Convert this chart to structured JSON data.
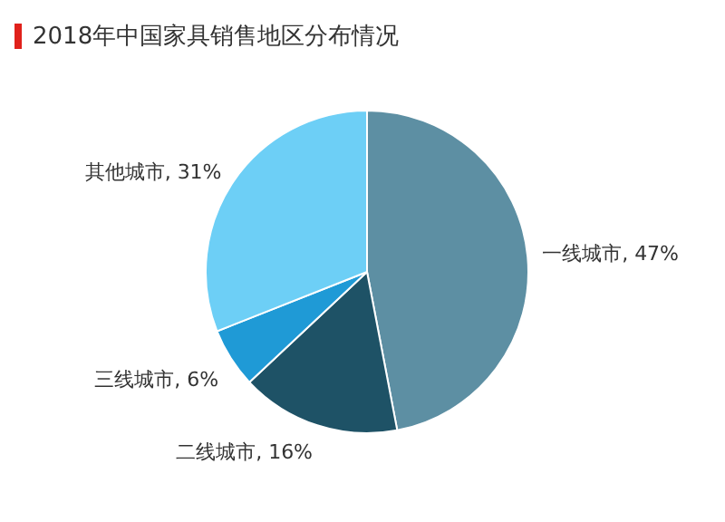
{
  "chart_data": {
    "type": "pie",
    "title": "2018年中国家具销售地区分布情况",
    "categories": [
      "一线城市",
      "二线城市",
      "三线城市",
      "其他城市"
    ],
    "values": [
      47,
      16,
      6,
      31
    ],
    "value_labels": [
      "47%",
      "16%",
      "6%",
      "31%"
    ],
    "colors": [
      "#5d8fa3",
      "#1e5266",
      "#1f9ad6",
      "#6dcff6"
    ],
    "legend": false
  }
}
